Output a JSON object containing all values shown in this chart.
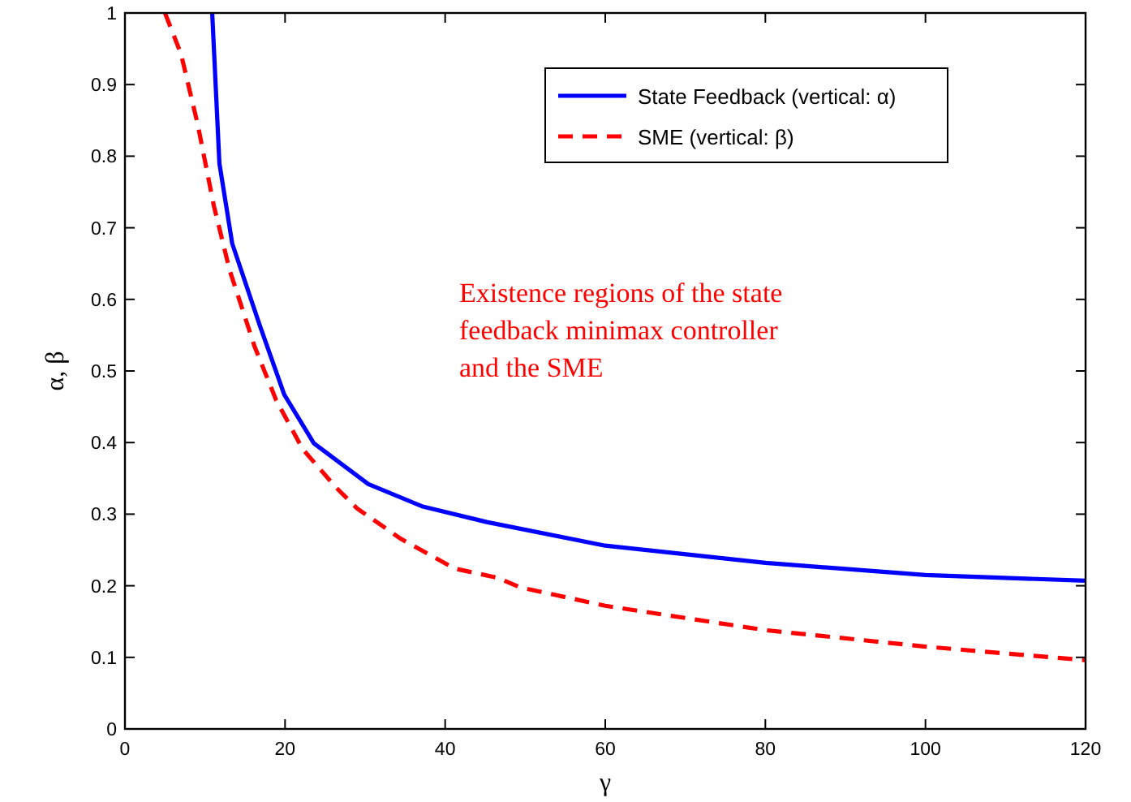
{
  "chart_data": {
    "type": "line",
    "xlabel": "γ",
    "ylabel": "α, β",
    "xlim": [
      0,
      120
    ],
    "ylim": [
      0,
      1
    ],
    "xticks": [
      0,
      20,
      40,
      60,
      80,
      100,
      120
    ],
    "yticks": [
      0,
      0.1,
      0.2,
      0.3,
      0.4,
      0.5,
      0.6,
      0.7,
      0.8,
      0.9,
      1
    ],
    "legend": "top right",
    "grid": false,
    "annotations": [
      "Existence regions of the state feedback minimax controller and the SME"
    ],
    "series": [
      {
        "name": "State Feedback (vertical: α)",
        "color": "#0000ff",
        "line_style": "solid",
        "x": [
          10.9,
          11.8,
          13.4,
          16.8,
          19.9,
          23.6,
          30.4,
          37.1,
          45.2,
          60,
          80,
          100,
          120
        ],
        "values": [
          1,
          0.79,
          0.678,
          0.565,
          0.467,
          0.399,
          0.342,
          0.311,
          0.289,
          0.256,
          0.232,
          0.215,
          0.207
        ]
      },
      {
        "name": "SME (vertical: β)",
        "color": "#ff0000",
        "line_style": "dashed",
        "x": [
          5,
          7,
          9.1,
          11.1,
          13.1,
          16.2,
          18.9,
          22.2,
          26.3,
          29,
          34.4,
          41.2,
          46.6,
          49.3,
          60,
          80,
          100,
          120
        ],
        "values": [
          1,
          0.943,
          0.844,
          0.731,
          0.64,
          0.534,
          0.459,
          0.391,
          0.338,
          0.308,
          0.266,
          0.224,
          0.211,
          0.198,
          0.172,
          0.138,
          0.115,
          0.096
        ]
      }
    ]
  }
}
